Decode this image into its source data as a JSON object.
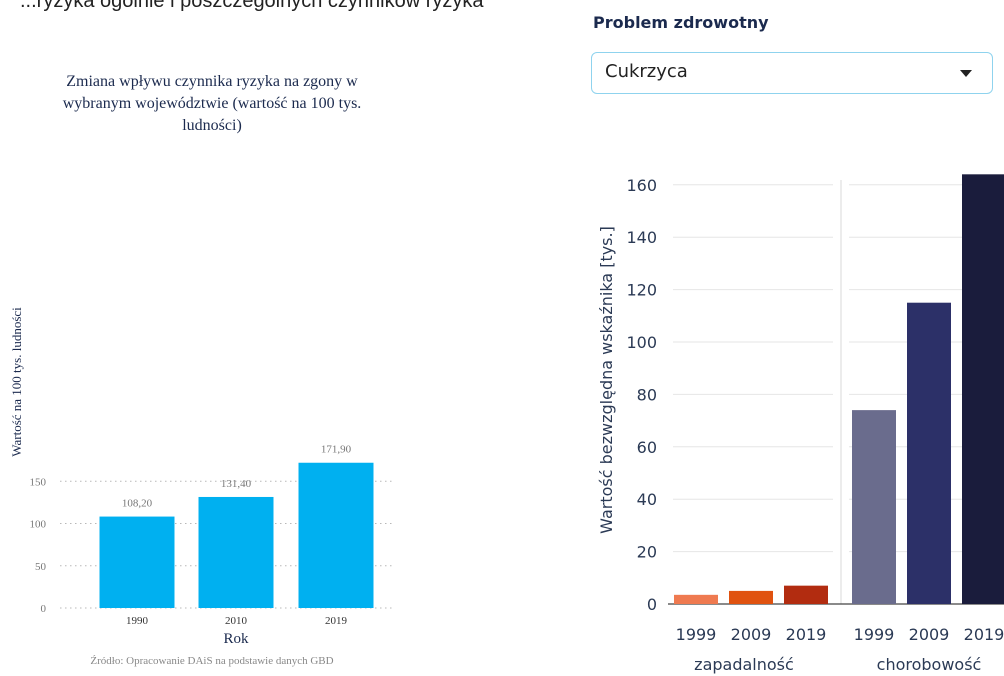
{
  "header_fragment": "...ryzyka ogólnie i poszczególnych czynników ryzyka",
  "filter": {
    "label": "Problem zdrowotny",
    "selected": "Cukrzyca",
    "icon": "caret-down-icon"
  },
  "chart_data": [
    {
      "type": "bar",
      "title": "Zmiana wpływu czynnika ryzyka na zgony w wybranym województwie (wartość na 100 tys. ludności)",
      "title_lines": [
        "Zmiana wpływu czynnika ryzyka na zgony w",
        "wybranym województwie (wartość na 100 tys.",
        "ludności)"
      ],
      "categories": [
        "1990",
        "2010",
        "2019"
      ],
      "values": [
        108.2,
        131.4,
        171.9
      ],
      "value_labels": [
        "108,20",
        "131,40",
        "171,90"
      ],
      "xlabel": "Rok",
      "ylabel": "Wartość na 100 tys. ludności",
      "ylim": [
        0,
        180
      ],
      "yticks": [
        0,
        50,
        100,
        150
      ],
      "grid": true,
      "color": "#00b0f0",
      "source": "Źródło: Opracowanie DAiS na podstawie danych GBD"
    },
    {
      "type": "bar",
      "ylabel": "Wartość bezwzględna wskaźnika  [tys.]",
      "ylim": [
        0,
        170
      ],
      "yticks": [
        0,
        20,
        40,
        60,
        80,
        100,
        120,
        140,
        160
      ],
      "grid": true,
      "groups": [
        {
          "name": "zapadalność",
          "categories": [
            "1999",
            "2009",
            "2019"
          ],
          "values": [
            3.5,
            5,
            7
          ],
          "colors": [
            "#ef7a50",
            "#e0520f",
            "#b22c10"
          ]
        },
        {
          "name": "chorobowość",
          "categories": [
            "1999",
            "2009",
            "2019"
          ],
          "values": [
            74,
            115,
            164
          ],
          "colors": [
            "#6a6c8d",
            "#2c3068",
            "#1a1c3c"
          ]
        }
      ]
    }
  ]
}
